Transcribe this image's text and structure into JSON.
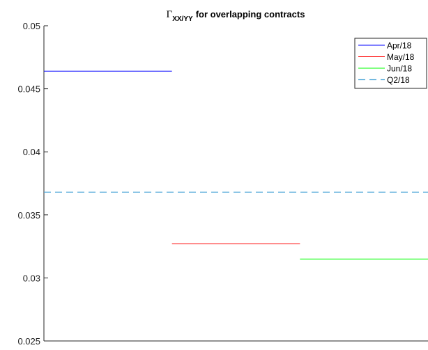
{
  "chart_data": {
    "type": "line",
    "title": {
      "symbol": "Γ",
      "subscript": "XX/YY",
      "text": "for overlapping contracts"
    },
    "xlabel": "",
    "ylabel": "",
    "ylim": [
      0.025,
      0.05
    ],
    "y_ticks": [
      0.025,
      0.03,
      0.035,
      0.04,
      0.045,
      0.05
    ],
    "y_tick_labels": [
      "0.025",
      "0.03",
      "0.035",
      "0.04",
      "0.045",
      "0.05"
    ],
    "xlim": [
      0,
      3
    ],
    "grid": false,
    "legend_position": "top-right",
    "series": [
      {
        "name": "Apr/18",
        "x": [
          0,
          1
        ],
        "y": [
          0.0464,
          0.0464
        ],
        "color": "#0000ff",
        "style": "solid"
      },
      {
        "name": "May/18",
        "x": [
          1,
          2
        ],
        "y": [
          0.0327,
          0.0327
        ],
        "color": "#ff0000",
        "style": "solid"
      },
      {
        "name": "Jun/18",
        "x": [
          2,
          3
        ],
        "y": [
          0.0315,
          0.0315
        ],
        "color": "#00ff00",
        "style": "solid"
      },
      {
        "name": "Q2/18",
        "x": [
          0,
          3
        ],
        "y": [
          0.0368,
          0.0368
        ],
        "color": "#4da6d8",
        "style": "dashed"
      }
    ]
  }
}
